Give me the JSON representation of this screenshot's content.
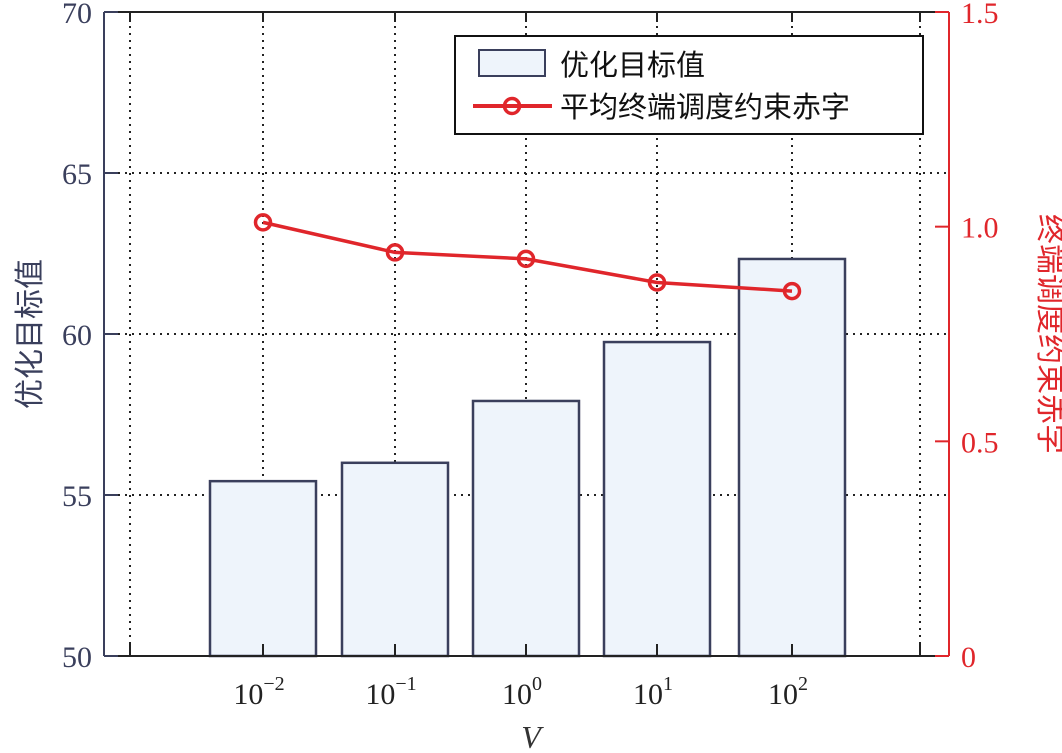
{
  "chart_data": {
    "type": "bar+line",
    "title": "",
    "xlabel": "V",
    "categories": [
      "10^-2",
      "10^-1",
      "10^0",
      "10^1",
      "10^2"
    ],
    "category_display": [
      {
        "base": "10",
        "exp": "−2"
      },
      {
        "base": "10",
        "exp": "−1"
      },
      {
        "base": "10",
        "exp": "0"
      },
      {
        "base": "10",
        "exp": "1"
      },
      {
        "base": "10",
        "exp": "2"
      }
    ],
    "series": [
      {
        "name": "优化目标值",
        "type": "bar",
        "axis": "left",
        "values": [
          55.43,
          56.0,
          57.92,
          59.75,
          62.33
        ],
        "fill": "#eef4fb",
        "stroke": "#3a3f5c"
      },
      {
        "name": "平均终端调度约束赤字",
        "type": "line",
        "axis": "right",
        "marker": "circle",
        "values": [
          1.01,
          0.94,
          0.925,
          0.87,
          0.85
        ],
        "color": "#e0262b"
      }
    ],
    "y_left": {
      "label": "优化目标值",
      "ylim": [
        50,
        70
      ],
      "ticks": [
        "50",
        "55",
        "60",
        "65",
        "70"
      ],
      "color": "#3a3f5c"
    },
    "y_right": {
      "label": "终端调度约束赤字",
      "ylim": [
        0,
        1.5
      ],
      "ticks": [
        "0",
        "0.5",
        "1.0",
        "1.5"
      ],
      "color": "#e0262b"
    },
    "grid": true,
    "legend_position": "upper right"
  },
  "legend": {
    "bar_label": "优化目标值",
    "line_label": "平均终端调度约束赤字"
  },
  "axes": {
    "x_label": "V",
    "left_label": "优化目标值",
    "right_label": "终端调度约束赤字",
    "left_ticks": [
      "50",
      "55",
      "60",
      "65",
      "70"
    ],
    "right_ticks": [
      "0",
      "0.5",
      "1.0",
      "1.5"
    ]
  }
}
